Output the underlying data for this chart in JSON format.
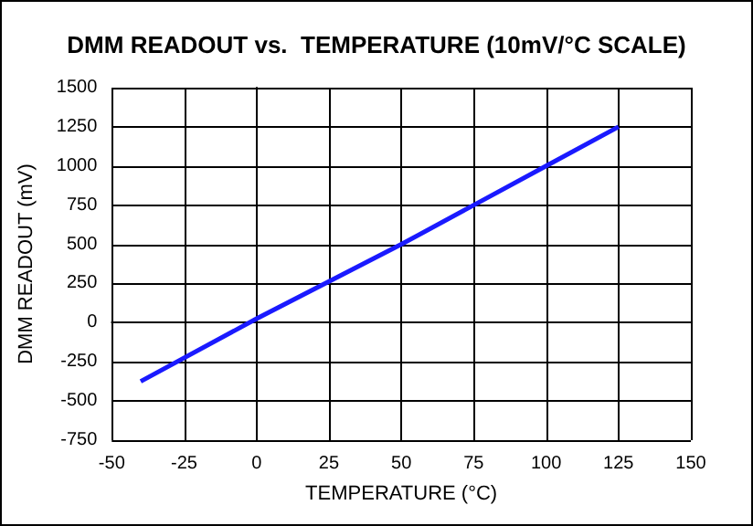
{
  "chart_data": {
    "type": "line",
    "title": "DMM READOUT vs.  TEMPERATURE (10mV/°C SCALE)",
    "xlabel": "TEMPERATURE (°C)",
    "ylabel": "DMM READOUT (mV)",
    "series": [
      {
        "color": "#1a1aff",
        "x": [
          -40,
          0,
          50,
          100,
          125
        ],
        "values": [
          -375,
          25,
          500,
          1000,
          1250
        ]
      }
    ],
    "xlim": [
      -50,
      150
    ],
    "xticks": [
      -50,
      -25,
      0,
      25,
      50,
      75,
      100,
      125,
      150
    ],
    "ylim": [
      -750,
      1500
    ],
    "yticks": [
      -750,
      -500,
      -250,
      0,
      250,
      500,
      750,
      1000,
      1250,
      1500
    ],
    "grid": true,
    "marker": "none",
    "line_style": "solid"
  }
}
